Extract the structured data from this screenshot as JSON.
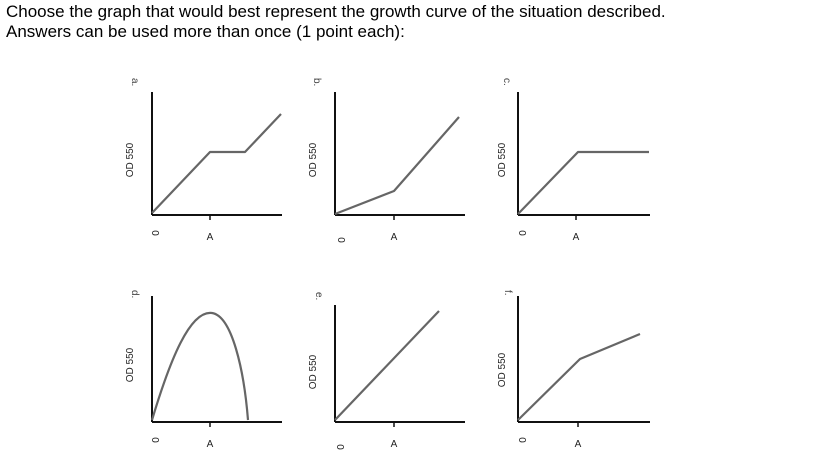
{
  "question": {
    "line1": "Choose the graph that would best represent the growth curve of the situation described.",
    "line2": "Answers can be used more than once (1 point each):"
  },
  "graph_common": {
    "y_label": "OD 550",
    "x_tick_origin": "0",
    "x_tick_a": "A"
  },
  "graphs": [
    {
      "letter": "a.",
      "shape": "rise-plateau-rise"
    },
    {
      "letter": "b.",
      "shape": "slow-then-fast-rise"
    },
    {
      "letter": "c.",
      "shape": "rise-then-plateau"
    },
    {
      "letter": "d.",
      "shape": "rise-peak-fall"
    },
    {
      "letter": "e.",
      "shape": "steady-linear-rise"
    },
    {
      "letter": "f.",
      "shape": "fast-then-slow-rise"
    }
  ],
  "colors": {
    "axis": "#111111",
    "curve": "#666666"
  }
}
